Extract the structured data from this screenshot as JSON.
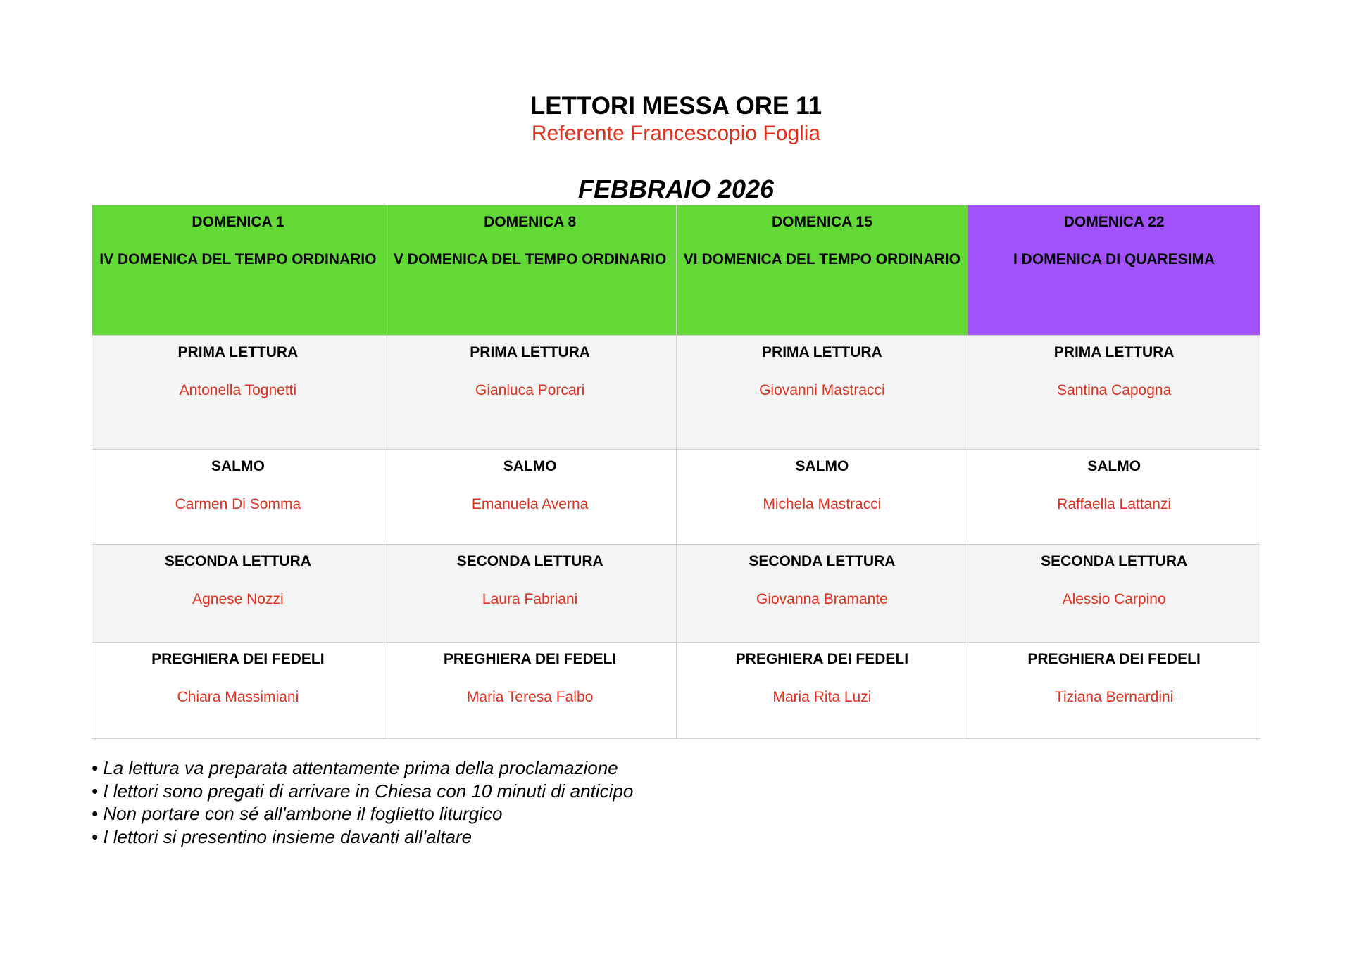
{
  "header": {
    "title": "LETTORI MESSA ORE 11",
    "subtitle": "Referente Francescopio Foglia",
    "month": "FEBBRAIO 2026"
  },
  "colors": {
    "ordinary_time": "#62d937",
    "lent": "#a152fd",
    "names": "#e0301e",
    "row_alt": "#f4f4f4"
  },
  "columns": [
    {
      "date": "DOMENICA 1",
      "occasion": "IV DOMENICA DEL TEMPO ORDINARIO",
      "color": "green"
    },
    {
      "date": "DOMENICA 8",
      "occasion": "V DOMENICA DEL TEMPO ORDINARIO",
      "color": "green"
    },
    {
      "date": "DOMENICA 15",
      "occasion": "VI DOMENICA DEL TEMPO ORDINARIO",
      "color": "green"
    },
    {
      "date": "DOMENICA 22",
      "occasion": "I DOMENICA DI QUARESIMA",
      "color": "purple"
    }
  ],
  "rows": [
    {
      "role": "PRIMA LETTURA",
      "names": [
        "Antonella Tognetti",
        "Gianluca Porcari",
        "Giovanni Mastracci",
        "Santina Capogna"
      ]
    },
    {
      "role": "SALMO",
      "names": [
        "Carmen Di Somma",
        "Emanuela Averna",
        "Michela Mastracci",
        "Raffaella Lattanzi"
      ]
    },
    {
      "role": "SECONDA LETTURA",
      "names": [
        "Agnese Nozzi",
        "Laura Fabriani",
        "Giovanna Bramante",
        "Alessio Carpino"
      ]
    },
    {
      "role": "PREGHIERA DEI FEDELI",
      "names": [
        "Chiara Massimiani",
        "Maria Teresa Falbo",
        "Maria Rita Luzi",
        "Tiziana Bernardini"
      ]
    }
  ],
  "notes": [
    "• La lettura va preparata attentamente prima della proclamazione",
    "• I lettori sono pregati di arrivare in Chiesa con 10 minuti di anticipo",
    "• Non portare con sé all'ambone il foglietto liturgico",
    "• I lettori si presentino insieme davanti all'altare"
  ]
}
